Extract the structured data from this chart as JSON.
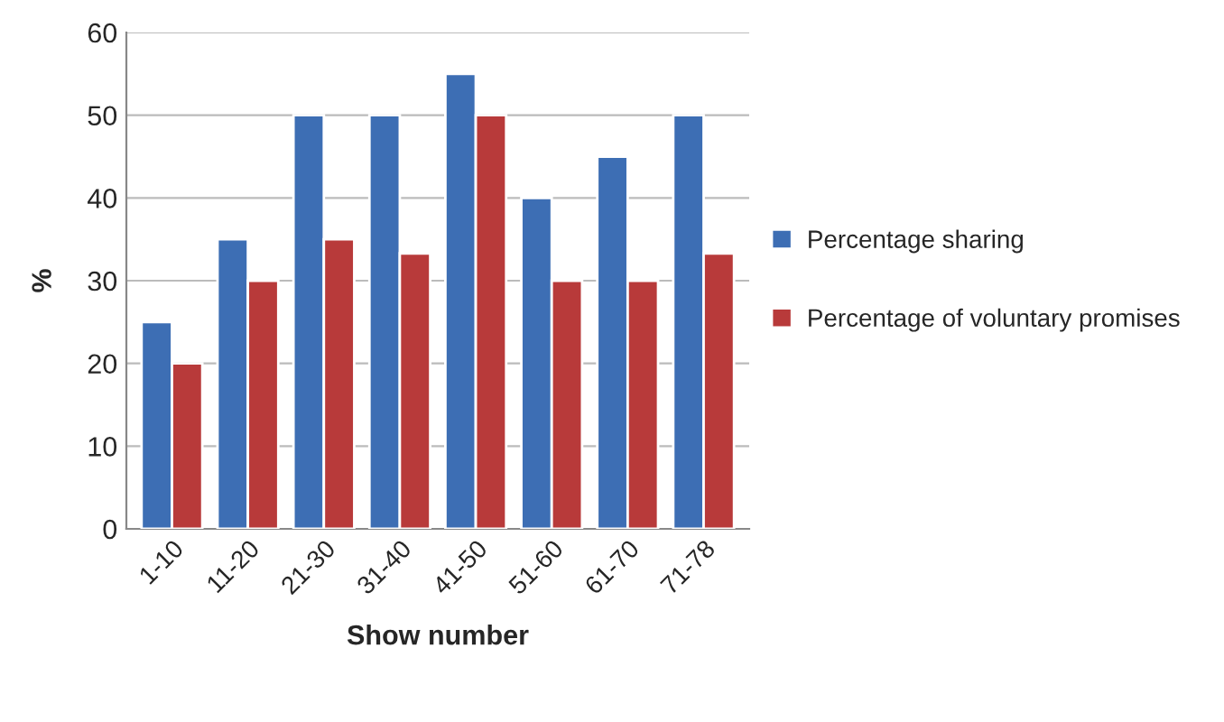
{
  "chart_data": {
    "type": "bar",
    "xlabel": "Show number",
    "ylabel": "%",
    "categories": [
      "1-10",
      "11-20",
      "21-30",
      "31-40",
      "41-50",
      "51-60",
      "61-70",
      "71-78"
    ],
    "series": [
      {
        "name": "Percentage sharing",
        "color": "#3d6eb4",
        "values": [
          25,
          35,
          50,
          50,
          55,
          40,
          45,
          50
        ]
      },
      {
        "name": "Percentage of voluntary promises",
        "color": "#b83a3a",
        "values": [
          20,
          30,
          35,
          33.3,
          50,
          30,
          30,
          33.3
        ]
      }
    ],
    "ylim": [
      0,
      60
    ],
    "yticks": [
      0,
      10,
      20,
      30,
      40,
      50,
      60
    ],
    "grid": "y",
    "legend": "right"
  }
}
